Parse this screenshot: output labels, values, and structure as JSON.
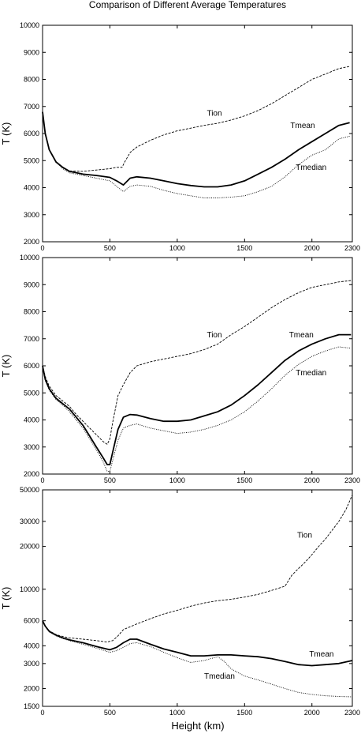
{
  "figure": {
    "title": "Comparison of Different Average Temperatures",
    "xlabel": "Height (km)"
  },
  "chart_data": [
    {
      "type": "line",
      "ylabel": "T (K)",
      "xlim": [
        0,
        2300
      ],
      "ylim": [
        2000,
        10000
      ],
      "yscale": "linear",
      "xticks": [
        0,
        500,
        1000,
        1500,
        2000,
        2300
      ],
      "yticks": [
        2000,
        3000,
        4000,
        5000,
        6000,
        7000,
        8000,
        9000,
        10000
      ],
      "grid": false,
      "series": [
        {
          "name": "Tion",
          "style": "dashed",
          "label_at": [
            1220,
            6650
          ],
          "x": [
            0,
            20,
            50,
            100,
            150,
            200,
            300,
            400,
            500,
            550,
            590,
            610,
            650,
            700,
            800,
            900,
            1000,
            1100,
            1200,
            1300,
            1400,
            1500,
            1600,
            1700,
            1800,
            1900,
            2000,
            2100,
            2200,
            2280
          ],
          "y": [
            6800,
            6000,
            5400,
            4950,
            4750,
            4620,
            4600,
            4650,
            4700,
            4750,
            4750,
            4950,
            5300,
            5500,
            5750,
            5950,
            6100,
            6200,
            6300,
            6380,
            6500,
            6650,
            6850,
            7100,
            7400,
            7700,
            8000,
            8200,
            8400,
            8480
          ]
        },
        {
          "name": "Tmean",
          "style": "solid-bold",
          "label_at": [
            1840,
            6200
          ],
          "x": [
            0,
            20,
            50,
            100,
            150,
            200,
            300,
            400,
            500,
            550,
            600,
            650,
            700,
            800,
            900,
            1000,
            1100,
            1200,
            1300,
            1400,
            1500,
            1600,
            1700,
            1800,
            1900,
            2000,
            2100,
            2200,
            2280
          ],
          "y": [
            6800,
            6000,
            5400,
            4950,
            4750,
            4600,
            4500,
            4450,
            4380,
            4250,
            4100,
            4350,
            4400,
            4350,
            4250,
            4150,
            4080,
            4030,
            4030,
            4100,
            4250,
            4500,
            4750,
            5050,
            5400,
            5700,
            6000,
            6300,
            6400
          ]
        },
        {
          "name": "Tmedian",
          "style": "dotted",
          "label_at": [
            1880,
            4650
          ],
          "x": [
            0,
            20,
            50,
            100,
            150,
            200,
            300,
            400,
            500,
            550,
            600,
            650,
            700,
            800,
            900,
            1000,
            1100,
            1200,
            1300,
            1400,
            1500,
            1600,
            1700,
            1800,
            1900,
            2000,
            2100,
            2200,
            2280
          ],
          "y": [
            6800,
            6000,
            5400,
            4950,
            4700,
            4550,
            4450,
            4350,
            4250,
            4050,
            3850,
            4050,
            4100,
            4050,
            3900,
            3780,
            3700,
            3620,
            3620,
            3650,
            3700,
            3850,
            4050,
            4400,
            4850,
            5200,
            5400,
            5800,
            5900
          ]
        }
      ]
    },
    {
      "type": "line",
      "ylabel": "T (K)",
      "xlim": [
        0,
        2300
      ],
      "ylim": [
        2000,
        10000
      ],
      "yscale": "linear",
      "xticks": [
        0,
        500,
        1000,
        1500,
        2000,
        2300
      ],
      "yticks": [
        2000,
        3000,
        4000,
        5000,
        6000,
        7000,
        8000,
        9000,
        10000
      ],
      "grid": false,
      "series": [
        {
          "name": "Tion",
          "style": "dashed",
          "label_at": [
            1220,
            7050
          ],
          "x": [
            0,
            20,
            50,
            100,
            150,
            200,
            250,
            300,
            350,
            400,
            450,
            480,
            500,
            520,
            560,
            600,
            650,
            700,
            800,
            900,
            1000,
            1100,
            1200,
            1300,
            1400,
            1500,
            1600,
            1700,
            1800,
            1900,
            2000,
            2100,
            2200,
            2290
          ],
          "y": [
            6000,
            5600,
            5250,
            4900,
            4700,
            4500,
            4200,
            3950,
            3700,
            3450,
            3200,
            3100,
            3300,
            3900,
            4900,
            5300,
            5750,
            6000,
            6150,
            6250,
            6350,
            6450,
            6600,
            6800,
            7150,
            7450,
            7800,
            8150,
            8450,
            8700,
            8900,
            9000,
            9100,
            9150
          ]
        },
        {
          "name": "Tmean",
          "style": "solid-bold",
          "label_at": [
            1830,
            7050
          ],
          "x": [
            0,
            20,
            50,
            100,
            150,
            200,
            250,
            300,
            350,
            400,
            450,
            480,
            500,
            520,
            560,
            600,
            650,
            700,
            800,
            900,
            1000,
            1100,
            1200,
            1300,
            1400,
            1500,
            1600,
            1700,
            1800,
            1900,
            2000,
            2100,
            2200,
            2290
          ],
          "y": [
            6000,
            5500,
            5150,
            4800,
            4600,
            4400,
            4100,
            3800,
            3400,
            3000,
            2600,
            2350,
            2350,
            2800,
            3650,
            4100,
            4200,
            4180,
            4050,
            3950,
            3950,
            4000,
            4150,
            4300,
            4550,
            4900,
            5300,
            5750,
            6200,
            6550,
            6800,
            7000,
            7150,
            7150
          ]
        },
        {
          "name": "Tmedian",
          "style": "dotted",
          "label_at": [
            1880,
            5650
          ],
          "x": [
            0,
            20,
            50,
            100,
            150,
            200,
            250,
            300,
            350,
            400,
            450,
            480,
            500,
            520,
            560,
            600,
            650,
            700,
            800,
            900,
            1000,
            1100,
            1200,
            1300,
            1400,
            1500,
            1600,
            1700,
            1800,
            1900,
            2000,
            2100,
            2200,
            2290
          ],
          "y": [
            6000,
            5450,
            5100,
            4750,
            4550,
            4300,
            4000,
            3700,
            3300,
            2900,
            2450,
            2100,
            2100,
            2500,
            3250,
            3700,
            3800,
            3850,
            3700,
            3600,
            3500,
            3550,
            3650,
            3800,
            4000,
            4300,
            4700,
            5150,
            5650,
            6050,
            6350,
            6550,
            6700,
            6650
          ]
        }
      ]
    },
    {
      "type": "line",
      "ylabel": "T (K)",
      "xlim": [
        0,
        2300
      ],
      "ylim": [
        1500,
        50000
      ],
      "yscale": "log",
      "xticks": [
        0,
        500,
        1000,
        1500,
        2000,
        2300
      ],
      "yticks": [
        1500,
        2000,
        3000,
        4000,
        6000,
        10000,
        20000,
        30000,
        50000
      ],
      "grid": false,
      "series": [
        {
          "name": "Tion",
          "style": "dashed",
          "label_at": [
            1890,
            23000
          ],
          "x": [
            0,
            20,
            50,
            100,
            150,
            200,
            300,
            400,
            480,
            520,
            560,
            600,
            700,
            800,
            900,
            1000,
            1100,
            1200,
            1300,
            1400,
            1500,
            1600,
            1700,
            1800,
            1850,
            1900,
            1950,
            2000,
            2050,
            2100,
            2150,
            2200,
            2250,
            2300
          ],
          "y": [
            6000,
            5500,
            5100,
            4800,
            4650,
            4550,
            4450,
            4350,
            4250,
            4350,
            4700,
            5200,
            5700,
            6200,
            6700,
            7100,
            7600,
            8000,
            8300,
            8500,
            8800,
            9200,
            9800,
            10500,
            12500,
            14000,
            15500,
            17500,
            20000,
            22500,
            26000,
            30000,
            36000,
            46000
          ]
        },
        {
          "name": "Tmean",
          "style": "solid-bold",
          "label_at": [
            1980,
            3350
          ],
          "x": [
            0,
            20,
            50,
            100,
            150,
            200,
            300,
            400,
            500,
            550,
            600,
            650,
            700,
            800,
            900,
            1000,
            1100,
            1200,
            1300,
            1400,
            1500,
            1600,
            1700,
            1800,
            1900,
            2000,
            2100,
            2200,
            2300
          ],
          "y": [
            6000,
            5500,
            5050,
            4750,
            4550,
            4400,
            4200,
            3950,
            3750,
            3900,
            4200,
            4450,
            4450,
            4100,
            3800,
            3600,
            3400,
            3400,
            3450,
            3450,
            3400,
            3350,
            3250,
            3100,
            2950,
            2900,
            2950,
            3000,
            3150
          ]
        },
        {
          "name": "Tmedian",
          "style": "dotted",
          "label_at": [
            1200,
            2350
          ],
          "x": [
            0,
            20,
            50,
            100,
            150,
            200,
            300,
            400,
            500,
            550,
            600,
            650,
            700,
            800,
            900,
            1000,
            1100,
            1200,
            1300,
            1350,
            1400,
            1500,
            1600,
            1700,
            1800,
            1900,
            2000,
            2100,
            2200,
            2300
          ],
          "y": [
            6000,
            5450,
            5000,
            4700,
            4500,
            4350,
            4100,
            3850,
            3600,
            3700,
            3900,
            4150,
            4200,
            3950,
            3600,
            3300,
            3050,
            3150,
            3350,
            3100,
            2750,
            2450,
            2300,
            2150,
            2000,
            1880,
            1820,
            1780,
            1760,
            1750
          ]
        }
      ]
    }
  ]
}
